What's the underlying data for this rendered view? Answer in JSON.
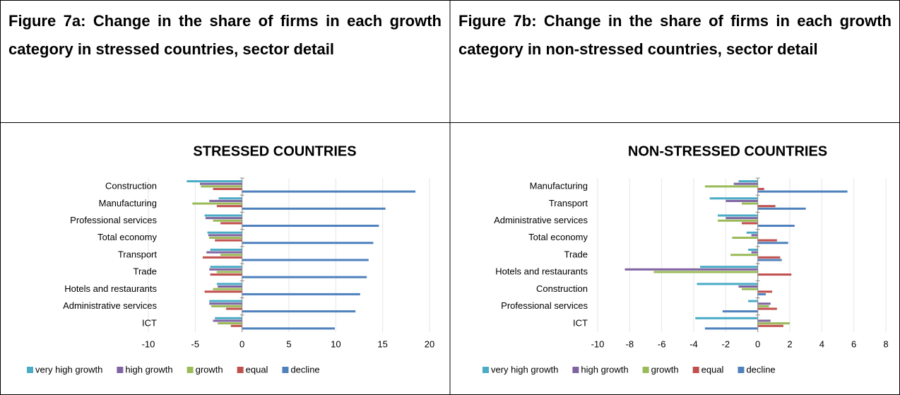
{
  "chart_data": [
    {
      "type": "bar",
      "orientation": "horizontal",
      "caption": "Figure 7a: Change in the share of firms in each growth category in stressed countries, sector detail",
      "title": "STRESSED COUNTRIES",
      "categories": [
        "Construction",
        "Manufacturing",
        "Professional services",
        "Total economy",
        "Transport",
        "Trade",
        "Hotels and restaurants",
        "Administrative services",
        "ICT"
      ],
      "series": [
        {
          "name": "very high growth",
          "color": "#4bacc6",
          "values": [
            -5.9,
            -2.5,
            -4.0,
            -3.7,
            -3.4,
            -3.4,
            -2.7,
            -3.5,
            -2.9
          ]
        },
        {
          "name": "high growth",
          "color": "#8064a2",
          "values": [
            -4.5,
            -3.5,
            -3.9,
            -3.6,
            -3.8,
            -3.5,
            -2.6,
            -3.5,
            -3.1
          ]
        },
        {
          "name": "growth",
          "color": "#9bbb59",
          "values": [
            -4.4,
            -5.3,
            -3.1,
            -3.5,
            -2.3,
            -2.7,
            -3.1,
            -3.3,
            -2.6
          ]
        },
        {
          "name": "equal",
          "color": "#c0504d",
          "values": [
            -3.1,
            -2.7,
            -2.3,
            -2.9,
            -4.2,
            -3.4,
            -4.0,
            -1.7,
            -1.2
          ]
        },
        {
          "name": "decline",
          "color": "#4f81bd",
          "values": [
            18.5,
            15.3,
            14.6,
            14.0,
            13.5,
            13.3,
            12.6,
            12.1,
            9.9
          ]
        }
      ],
      "xlim": [
        -10,
        20
      ],
      "xticks": [
        -10,
        -5,
        0,
        5,
        10,
        15,
        20
      ],
      "grid": true,
      "legend": "bottom"
    },
    {
      "type": "bar",
      "orientation": "horizontal",
      "caption": "Figure 7b: Change in the share of firms in each growth category in non-stressed countries, sector detail",
      "title": "NON-STRESSED COUNTRIES",
      "categories": [
        "Manufacturing",
        "Transport",
        "Administrative services",
        "Total economy",
        "Trade",
        "Hotels and restaurants",
        "Construction",
        "Professional services",
        "ICT"
      ],
      "series": [
        {
          "name": "very high growth",
          "color": "#4bacc6",
          "values": [
            -1.2,
            -3.0,
            -2.5,
            -0.7,
            -0.6,
            -3.6,
            -3.8,
            -0.6,
            -3.9
          ]
        },
        {
          "name": "high growth",
          "color": "#8064a2",
          "values": [
            -1.5,
            -2.0,
            -2.0,
            -0.4,
            -0.4,
            -8.3,
            -1.2,
            0.8,
            0.8
          ]
        },
        {
          "name": "growth",
          "color": "#9bbb59",
          "values": [
            -3.3,
            -1.0,
            -2.5,
            -1.6,
            -1.7,
            -6.5,
            -1.0,
            0.7,
            2.0
          ]
        },
        {
          "name": "equal",
          "color": "#c0504d",
          "values": [
            0.4,
            1.1,
            -1.0,
            1.2,
            1.4,
            2.1,
            0.9,
            1.2,
            1.6
          ]
        },
        {
          "name": "decline",
          "color": "#4f81bd",
          "values": [
            5.6,
            3.0,
            2.3,
            1.9,
            1.5,
            0.0,
            0.5,
            -2.2,
            -3.3
          ]
        }
      ],
      "xlim": [
        -10,
        8
      ],
      "xticks": [
        -10,
        -8,
        -6,
        -4,
        -2,
        0,
        2,
        4,
        6,
        8
      ],
      "grid": true,
      "legend": "bottom"
    }
  ]
}
